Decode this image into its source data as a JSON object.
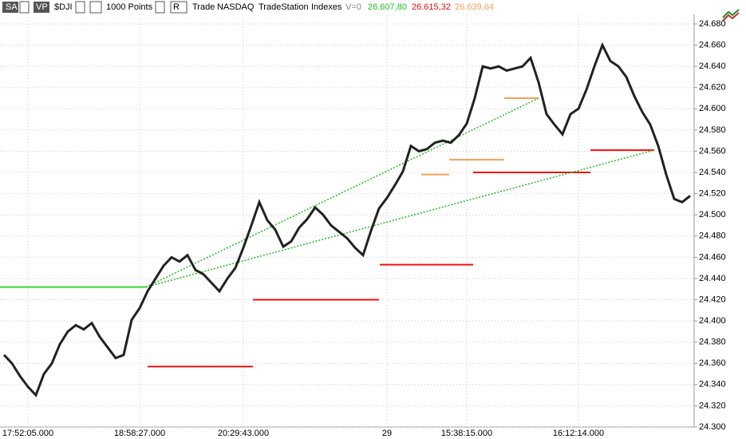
{
  "toolbar": {
    "symbol_type": "SA",
    "profile": "VP",
    "symbol": "$DJI",
    "interval": "1000 Points",
    "range": "R",
    "data_type": "Trade",
    "exchange": "NASDAQ",
    "source": "TradeStation",
    "category": "Indexes",
    "volume": "V=0",
    "quote_1": "26.607,80",
    "quote_2": "26.615,32",
    "quote_3": "26.639,64"
  },
  "chart_data": {
    "type": "line",
    "color": "#222222",
    "grid": true,
    "categories": [
      null,
      null,
      null,
      "17:52:05.000",
      null,
      null,
      null,
      null,
      null,
      null,
      null,
      null,
      null,
      null,
      null,
      null,
      null,
      "18:58:27.000",
      null,
      null,
      null,
      null,
      null,
      null,
      null,
      null,
      null,
      null,
      null,
      null,
      "20:29:43.000",
      null,
      null,
      null,
      null,
      null,
      null,
      null,
      null,
      null,
      null,
      null,
      null,
      null,
      null,
      null,
      null,
      null,
      "29",
      null,
      null,
      null,
      null,
      null,
      null,
      null,
      null,
      null,
      "15:38:15.000",
      null,
      null,
      null,
      null,
      null,
      null,
      null,
      null,
      null,
      null,
      null,
      null,
      null,
      "16:12:14.000",
      null,
      null,
      null,
      null,
      null,
      null,
      null,
      null,
      null,
      null,
      null,
      null,
      null,
      null
    ],
    "values": [
      24368,
      24360,
      24348,
      24338,
      24330,
      24350,
      24360,
      24378,
      24390,
      24396,
      24392,
      24398,
      24385,
      24375,
      24365,
      24368,
      24401,
      24412,
      24428,
      24440,
      24452,
      24460,
      24456,
      24462,
      24448,
      24444,
      24436,
      24428,
      24440,
      24450,
      24469,
      24490,
      24512,
      24495,
      24486,
      24470,
      24475,
      24488,
      24496,
      24507,
      24500,
      24490,
      24484,
      24478,
      24469,
      24462,
      24485,
      24506,
      24516,
      24528,
      24541,
      24565,
      24560,
      24562,
      24568,
      24570,
      24568,
      24575,
      24586,
      24610,
      24640,
      24638,
      24640,
      24636,
      24638,
      24640,
      24648,
      24625,
      24595,
      24585,
      24576,
      24595,
      24600,
      24618,
      24640,
      24660,
      24645,
      24640,
      24630,
      24612,
      24597,
      24585,
      24565,
      24538,
      24515,
      24512,
      24518
    ],
    "ylim": [
      24300,
      24689
    ],
    "yticks": [
      {
        "value": 24300,
        "label": "24.300"
      },
      {
        "value": 24320,
        "label": "24.320"
      },
      {
        "value": 24340,
        "label": "24.340"
      },
      {
        "value": 24360,
        "label": "24.360"
      },
      {
        "value": 24380,
        "label": "24.380"
      },
      {
        "value": 24400,
        "label": "24.400"
      },
      {
        "value": 24420,
        "label": "24.420"
      },
      {
        "value": 24440,
        "label": "24.440"
      },
      {
        "value": 24460,
        "label": "24.460"
      },
      {
        "value": 24480,
        "label": "24.480"
      },
      {
        "value": 24500,
        "label": "24.500"
      },
      {
        "value": 24520,
        "label": "24.520"
      },
      {
        "value": 24540,
        "label": "24.540"
      },
      {
        "value": 24560,
        "label": "24.560"
      },
      {
        "value": 24580,
        "label": "24.580"
      },
      {
        "value": 24600,
        "label": "24.600"
      },
      {
        "value": 24620,
        "label": "24.620"
      },
      {
        "value": 24640,
        "label": "24.640"
      },
      {
        "value": 24660,
        "label": "24.660"
      },
      {
        "value": 24680,
        "label": "24.680"
      }
    ],
    "levels": [
      {
        "color": "#33dd33",
        "from": -0.5,
        "to": 17.8,
        "value": 24432
      },
      {
        "color": "#ee1111",
        "from": 18,
        "to": 31.2,
        "value": 24357
      },
      {
        "color": "#ee1111",
        "from": 31.2,
        "to": 47,
        "value": 24420
      },
      {
        "color": "#ee1111",
        "from": 47.1,
        "to": 58.8,
        "value": 24453
      },
      {
        "color": "#ee1111",
        "from": 58.8,
        "to": 73.5,
        "value": 24540
      },
      {
        "color": "#ee1111",
        "from": 73.5,
        "to": 81.5,
        "value": 24561
      },
      {
        "color": "#f5a05a",
        "from": 52.3,
        "to": 55.8,
        "value": 24538
      },
      {
        "color": "#f5a05a",
        "from": 55.8,
        "to": 62.7,
        "value": 24552
      },
      {
        "color": "#f5a05a",
        "from": 62.7,
        "to": 67,
        "value": 24610
      }
    ],
    "trendlines": [
      {
        "color": "#22bb22",
        "x": [
          17.8,
          67
        ],
        "values": [
          24432,
          24610
        ]
      },
      {
        "color": "#22bb22",
        "x": [
          17.8,
          81.5
        ],
        "values": [
          24432,
          24561
        ]
      }
    ]
  }
}
